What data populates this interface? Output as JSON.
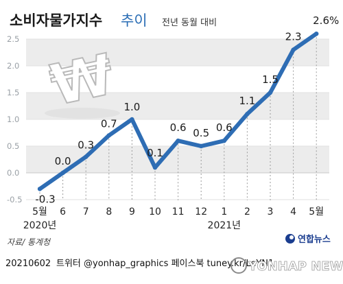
{
  "header": {
    "title": "소비자물가지수",
    "title_suffix": "추이",
    "unit_note": "전년 동월 대비"
  },
  "chart_data": {
    "type": "line",
    "title": "소비자물가지수 추이",
    "subtitle": "전년 동월 대비",
    "categories": [
      "5월",
      "6",
      "7",
      "8",
      "9",
      "10",
      "11",
      "12",
      "1",
      "2",
      "3",
      "4",
      "5월"
    ],
    "year_labels": [
      {
        "label": "2020년",
        "index": 0
      },
      {
        "label": "2021년",
        "index": 8
      }
    ],
    "values": [
      -0.3,
      0.0,
      0.3,
      0.7,
      1.0,
      0.1,
      0.6,
      0.5,
      0.6,
      1.1,
      1.5,
      2.3,
      2.6
    ],
    "data_labels": [
      "-0.3",
      "0.0",
      "0.3",
      "0.7",
      "1.0",
      "0.1",
      "0.6",
      "0.5",
      "0.6",
      "1.1",
      "1.5",
      "2.3",
      "2.6%"
    ],
    "yticks": [
      "-0.5",
      "0.0",
      "0.5",
      "1.0",
      "1.5",
      "2.0",
      "2.5"
    ],
    "ylim": [
      -0.5,
      2.6
    ],
    "line_color": "#2e6db4",
    "band_color": "#ececec",
    "grid": true
  },
  "footer": {
    "source": "자료/ 통계청",
    "date_code": "20210602",
    "social": "트위터 @yonhap_graphics  페이스북 tuney.kr/LeYN1",
    "logo": "연합뉴스",
    "watermark": "YONHAP NEWS"
  },
  "colors": {
    "accent": "#2e6db4",
    "logo": "#1a3d8f"
  }
}
